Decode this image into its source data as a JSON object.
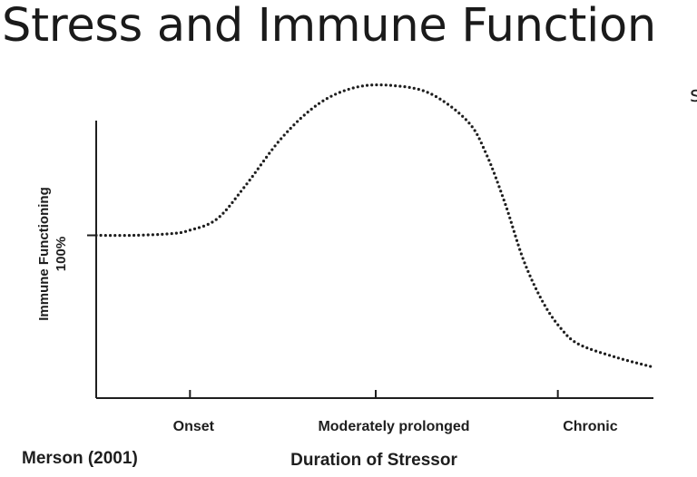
{
  "slide": {
    "title": "Stress and Immune Function",
    "edge_fragment": "s"
  },
  "chart_data": {
    "type": "line",
    "title": "",
    "xlabel": "Duration of Stressor",
    "ylabel": "Immune Functioning",
    "y_reference_label": "100%",
    "source": "Merson (2001)",
    "categories": [
      "Onset",
      "Moderately prolonged",
      "Chronic"
    ],
    "xlim": [
      0,
      3
    ],
    "ylim": [
      0,
      200
    ],
    "y_reference_value": 100,
    "series": [
      {
        "name": "Immune Functioning",
        "style": "dotted",
        "x": [
          0,
          0.2,
          0.4,
          0.5,
          0.65,
          0.8,
          1.0,
          1.2,
          1.4,
          1.6,
          1.8,
          2.0,
          2.1,
          2.2,
          2.3,
          2.4,
          2.5,
          2.6,
          2.8,
          3.0
        ],
        "y": [
          100,
          100,
          101,
          103,
          110,
          130,
          160,
          181,
          191,
          192,
          187,
          170,
          150,
          120,
          85,
          60,
          43,
          33,
          25,
          19
        ]
      }
    ],
    "colors": {
      "line": "#1e1e1e",
      "axis": "#1e1e1e"
    }
  }
}
